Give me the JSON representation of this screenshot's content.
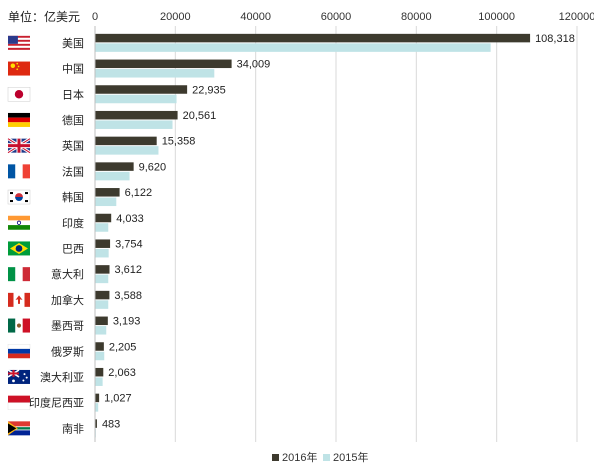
{
  "chart_data": {
    "type": "bar",
    "orientation": "horizontal",
    "unit_label": "单位：亿美元",
    "categories": [
      "美国",
      "中国",
      "日本",
      "德国",
      "英国",
      "法国",
      "韩国",
      "印度",
      "巴西",
      "意大利",
      "加拿大",
      "墨西哥",
      "俄罗斯",
      "澳大利亚",
      "印度尼西亚",
      "南非"
    ],
    "series": [
      {
        "name": "2016年",
        "color": "#3d3a2e",
        "values": [
          108318,
          34009,
          22935,
          20561,
          15358,
          9620,
          6122,
          4033,
          3754,
          3612,
          3588,
          3193,
          2205,
          2063,
          1027,
          483
        ],
        "value_labels": [
          "108,318",
          "34,009",
          "22,935",
          "20,561",
          "15,358",
          "9,620",
          "6,122",
          "4,033",
          "3,754",
          "3,612",
          "3,588",
          "3,193",
          "2,205",
          "2,063",
          "1,027",
          "483"
        ]
      },
      {
        "name": "2015年",
        "color": "#bfe3e6",
        "values": [
          98500,
          29700,
          20300,
          19300,
          15800,
          8600,
          5300,
          3300,
          3400,
          3300,
          3300,
          2800,
          2300,
          1900,
          800,
          200
        ]
      }
    ],
    "xlim": [
      0,
      120000
    ],
    "xticks": [
      "0",
      "20000",
      "40000",
      "60000",
      "80000",
      "100000",
      "120000"
    ],
    "xtick_values": [
      0,
      20000,
      40000,
      60000,
      80000,
      100000,
      120000
    ],
    "grid": true,
    "legend_position": "bottom-center",
    "flags": [
      "us-flag-icon",
      "china-flag-icon",
      "japan-flag-icon",
      "germany-flag-icon",
      "uk-flag-icon",
      "france-flag-icon",
      "korea-flag-icon",
      "india-flag-icon",
      "brazil-flag-icon",
      "italy-flag-icon",
      "canada-flag-icon",
      "mexico-flag-icon",
      "russia-flag-icon",
      "australia-flag-icon",
      "indonesia-flag-icon",
      "south-africa-flag-icon"
    ]
  }
}
